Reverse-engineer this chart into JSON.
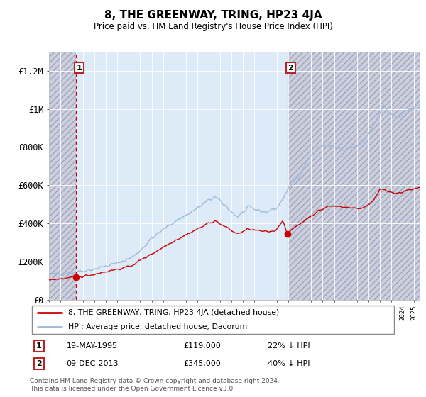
{
  "title": "8, THE GREENWAY, TRING, HP23 4JA",
  "subtitle": "Price paid vs. HM Land Registry's House Price Index (HPI)",
  "sale1_price": 119000,
  "sale1_hpi_pct": "22% ↓ HPI",
  "sale1_display": "19-MAY-1995",
  "sale2_price": 345000,
  "sale2_hpi_pct": "40% ↓ HPI",
  "sale2_display": "09-DEC-2013",
  "legend_line1": "8, THE GREENWAY, TRING, HP23 4JA (detached house)",
  "legend_line2": "HPI: Average price, detached house, Dacorum",
  "footer": "Contains HM Land Registry data © Crown copyright and database right 2024.\nThis data is licensed under the Open Government Licence v3.0.",
  "hpi_color": "#a0bcd8",
  "price_color": "#cc0000",
  "marker_color": "#cc0000",
  "dashed_color1": "#cc0000",
  "dashed_color2": "#aaaacc",
  "hatch_bg_color": "#c8ccd8",
  "plot_bg_color": "#ddeaf8",
  "grid_color": "#ffffff",
  "ylim": [
    0,
    1300000
  ],
  "xlim_start": 1993.0,
  "xlim_end": 2025.5,
  "ylabel_ticks": [
    0,
    200000,
    400000,
    600000,
    800000,
    1000000,
    1200000
  ],
  "ylabel_labels": [
    "£0",
    "£200K",
    "£400K",
    "£600K",
    "£800K",
    "£1M",
    "£1.2M"
  ],
  "sale1_year_decimal": 1995.38,
  "sale2_year_decimal": 2013.94
}
